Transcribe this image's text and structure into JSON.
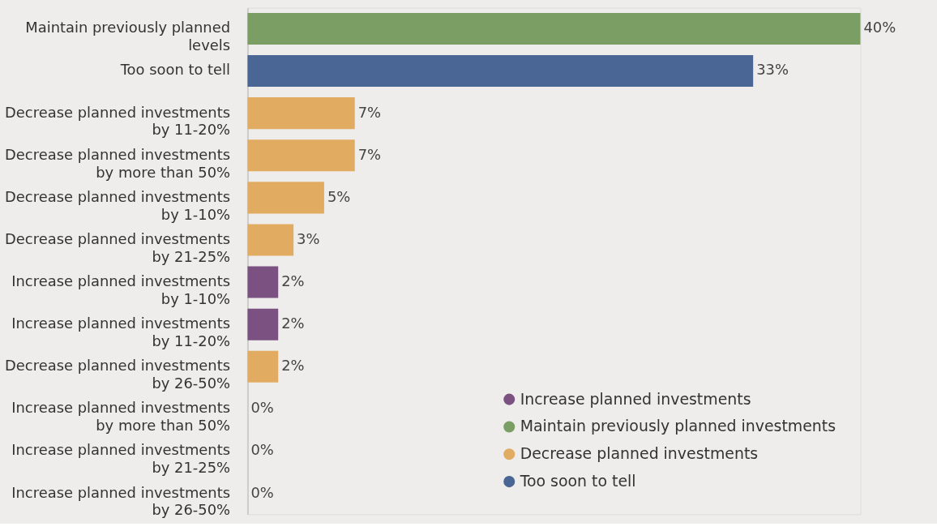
{
  "chart_data": {
    "type": "bar",
    "orientation": "horizontal",
    "legend": "bottom right",
    "categories": [
      "Maintain previously planned levels",
      "Too soon to tell",
      "Decrease planned investments by 11-20%",
      "Decrease planned investments by more than 50%",
      "Decrease planned investments by 1-10%",
      "Decrease planned investments by 21-25%",
      "Increase planned investments by 1-10%",
      "Increase planned investments by 11-20%",
      "Decrease planned investments by 26-50%",
      "Increase planned investments by more than 50%",
      "Increase planned investments by 21-25%",
      "Increase planned investments by 26-50%"
    ],
    "series": [
      {
        "name": "Increase planned investments",
        "color": "#7b5182",
        "values": [
          null,
          null,
          null,
          null,
          null,
          null,
          2,
          2,
          null,
          0,
          0,
          0
        ],
        "value_labels": [
          null,
          null,
          null,
          null,
          null,
          null,
          "2%",
          "2%",
          null,
          "0%",
          "0%",
          "0%"
        ]
      },
      {
        "name": "Maintain previously planned investments",
        "color": "#7a9e63",
        "values": [
          40,
          null,
          null,
          null,
          null,
          null,
          null,
          null,
          null,
          null,
          null,
          null
        ],
        "value_labels": [
          "40%",
          null,
          null,
          null,
          null,
          null,
          null,
          null,
          null,
          null,
          null,
          null
        ]
      },
      {
        "name": "Decrease planned investments",
        "color": "#e2ab62",
        "values": [
          null,
          null,
          7,
          7,
          5,
          3,
          null,
          null,
          2,
          null,
          null,
          null
        ],
        "value_labels": [
          null,
          null,
          "7%",
          "7%",
          "5%",
          "3%",
          null,
          null,
          "2%",
          null,
          null,
          null
        ]
      },
      {
        "name": "Too soon to tell",
        "color": "#4a6694",
        "values": [
          null,
          33,
          null,
          null,
          null,
          null,
          null,
          null,
          null,
          null,
          null,
          null
        ],
        "value_labels": [
          null,
          "33%",
          null,
          null,
          null,
          null,
          null,
          null,
          null,
          null,
          null,
          null
        ]
      }
    ]
  }
}
